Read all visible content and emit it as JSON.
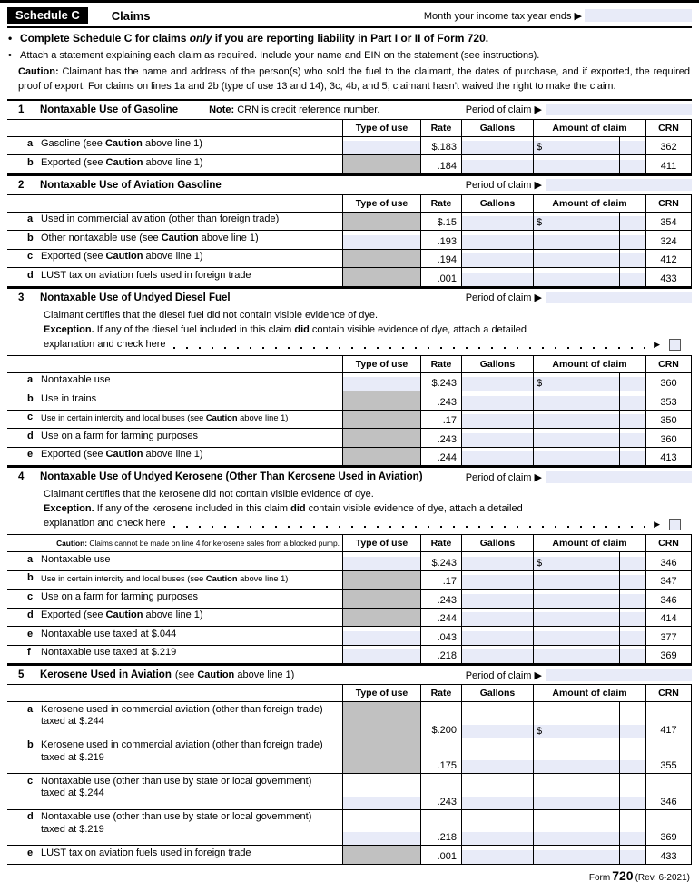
{
  "header": {
    "schedule": "Schedule C",
    "claims": "Claims",
    "month_label": "Month your income tax year ends ▶"
  },
  "intro": {
    "bullet": "•",
    "b1_pre": "Complete Schedule C for claims ",
    "b1_em": "only",
    "b1_post": " if you are reporting liability in Part I or II of Form 720.",
    "b2": "Attach a statement explaining each claim as required. Include your name and EIN on the statement (see instructions).",
    "caution_bold": "Caution:",
    "caution_text": "Claimant has the name and address of the person(s) who sold the fuel to the claimant, the dates of purchase, and if exported, the required proof of export. For claims on lines 1a and 2b (type of use 13 and 14), 3c, 4b, and 5, claimant hasn’t waived the right to make the claim."
  },
  "columns": {
    "type": "Type of use",
    "rate": "Rate",
    "gallons": "Gallons",
    "amount": "Amount of claim",
    "crn": "CRN"
  },
  "period_label": "Period of claim ▶",
  "arrow": "▶",
  "colors": {
    "field_fill": "#e8ebf8",
    "blocked_fill": "#c1c1c1",
    "header_bar": "#000000"
  },
  "sections": [
    {
      "num": "1",
      "title": "Nontaxable Use of Gasoline",
      "note_bold": "Note:",
      "note_text": "CRN is credit reference number.",
      "rows": [
        {
          "letter": "a",
          "pre": "Gasoline (see ",
          "bold": "Caution",
          "post": " above line 1)",
          "rate": "$.183",
          "crn": "362",
          "dollar": "$"
        },
        {
          "letter": "b",
          "pre": "Exported (see ",
          "bold": "Caution",
          "post": " above line 1)",
          "rate": ".184",
          "crn": "411"
        }
      ]
    },
    {
      "num": "2",
      "title": "Nontaxable Use of Aviation Gasoline",
      "rows": [
        {
          "letter": "a",
          "pre": "Used in commercial aviation (other than foreign trade)",
          "rate": "$.15",
          "crn": "354",
          "dollar": "$"
        },
        {
          "letter": "b",
          "pre": "Other nontaxable use (see ",
          "bold": "Caution",
          "post": " above line 1)",
          "rate": ".193",
          "crn": "324"
        },
        {
          "letter": "c",
          "pre": "Exported (see ",
          "bold": "Caution",
          "post": " above line 1)",
          "rate": ".194",
          "crn": "412"
        },
        {
          "letter": "d",
          "pre": "LUST tax on aviation fuels used in foreign trade",
          "rate": ".001",
          "crn": "433"
        }
      ]
    },
    {
      "num": "3",
      "title": "Nontaxable Use of Undyed Diesel Fuel",
      "cert": "Claimant certifies that the diesel fuel did not contain visible evidence of dye.",
      "exc_bold": "Exception.",
      "exc_pre": "If any of the diesel fuel included in this claim ",
      "exc_did": "did",
      "exc_post": " contain visible evidence of dye, attach a detailed",
      "exc_line2": "explanation and check here",
      "rows": [
        {
          "letter": "a",
          "pre": "Nontaxable use",
          "rate": "$.243",
          "crn": "360",
          "dollar": "$"
        },
        {
          "letter": "b",
          "pre": "Use in trains",
          "rate": ".243",
          "crn": "353"
        },
        {
          "letter": "c",
          "pre": "Use in certain intercity and local buses (see ",
          "bold": "Caution",
          "post": " above line 1)",
          "rate": ".17",
          "crn": "350"
        },
        {
          "letter": "d",
          "pre": "Use on a farm for farming purposes",
          "rate": ".243",
          "crn": "360"
        },
        {
          "letter": "e",
          "pre": "Exported (see ",
          "bold": "Caution",
          "post": " above line 1)",
          "rate": ".244",
          "crn": "413"
        }
      ]
    },
    {
      "num": "4",
      "title": "Nontaxable Use of Undyed Kerosene (Other Than Kerosene Used in Aviation)",
      "cert": "Claimant certifies that the kerosene did not contain visible evidence of dye.",
      "exc_bold": "Exception.",
      "exc_pre": "If any of the kerosene included in this claim ",
      "exc_did": "did",
      "exc_post": " contain visible evidence of dye, attach a detailed",
      "exc_line2": "explanation and check here",
      "tcaution_bold": "Caution:",
      "tcaution_text": "Claims cannot be made on line 4 for kerosene sales from a blocked pump.",
      "rows": [
        {
          "letter": "a",
          "pre": "Nontaxable use",
          "rate": "$.243",
          "crn": "346",
          "dollar": "$"
        },
        {
          "letter": "b",
          "pre": "Use in certain intercity and local buses (see ",
          "bold": "Caution",
          "post": " above line 1)",
          "rate": ".17",
          "crn": "347"
        },
        {
          "letter": "c",
          "pre": "Use on a farm for farming purposes",
          "rate": ".243",
          "crn": "346"
        },
        {
          "letter": "d",
          "pre": "Exported (see ",
          "bold": "Caution",
          "post": " above line 1)",
          "rate": ".244",
          "crn": "414"
        },
        {
          "letter": "e",
          "pre": "Nontaxable use taxed at $.044",
          "rate": ".043",
          "crn": "377"
        },
        {
          "letter": "f",
          "pre": "Nontaxable use taxed at $.219",
          "rate": ".218",
          "crn": "369"
        }
      ]
    },
    {
      "num": "5",
      "title": "Kerosene Used in Aviation",
      "suffix_pre": "(see ",
      "suffix_bold": "Caution",
      "suffix_post": " above line 1)",
      "rows": [
        {
          "letter": "a",
          "pre": "Kerosene used in commercial aviation (other than foreign trade) taxed at $.244",
          "rate": "$.200",
          "crn": "417",
          "dollar": "$"
        },
        {
          "letter": "b",
          "pre": "Kerosene used in commercial aviation (other than foreign trade) taxed at $.219",
          "rate": ".175",
          "crn": "355"
        },
        {
          "letter": "c",
          "pre": "Nontaxable use (other than use by state or local government) taxed at $.244",
          "rate": ".243",
          "crn": "346"
        },
        {
          "letter": "d",
          "pre": "Nontaxable use (other than use by state or local government) taxed at $.219",
          "rate": ".218",
          "crn": "369"
        },
        {
          "letter": "e",
          "pre": "LUST tax on aviation fuels used in foreign trade",
          "rate": ".001",
          "crn": "433"
        }
      ]
    }
  ],
  "footer": {
    "form": "Form",
    "number": "720",
    "rev": "(Rev. 6-2021)"
  }
}
